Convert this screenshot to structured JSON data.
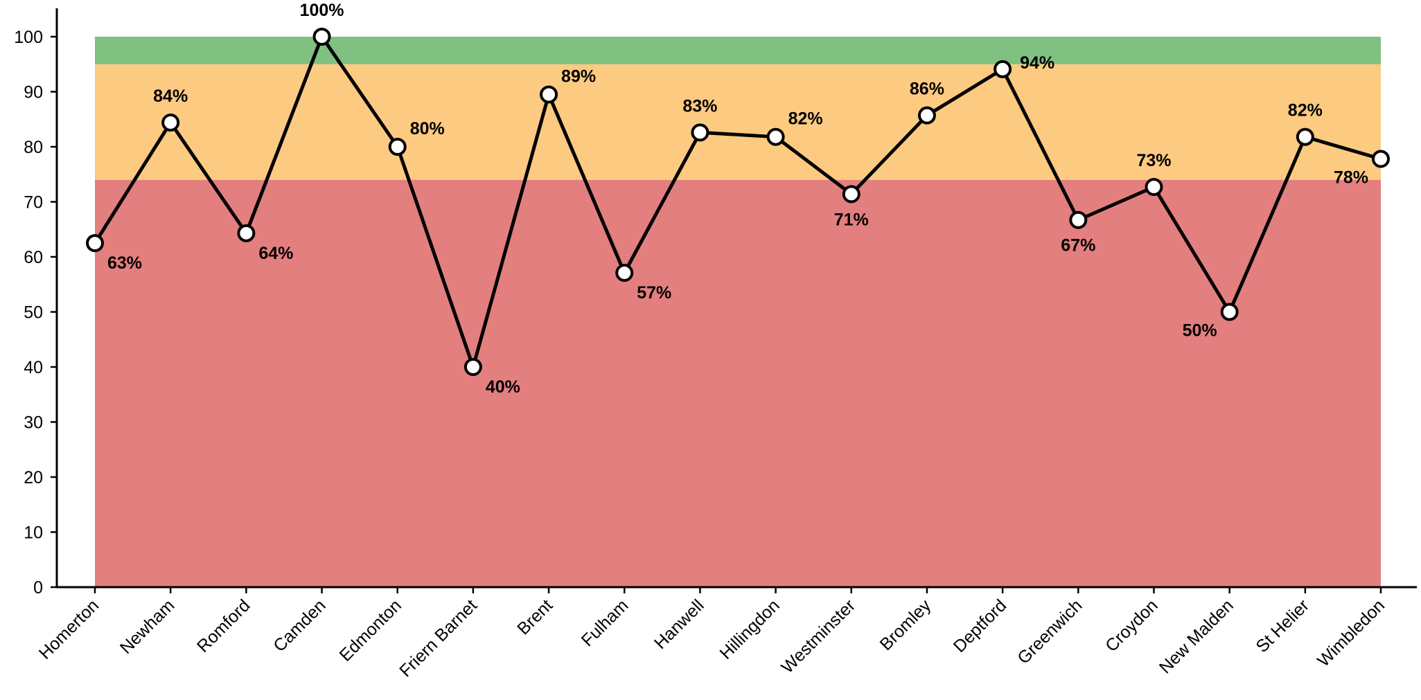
{
  "chart_data": {
    "type": "line",
    "title": "",
    "xlabel": "",
    "ylabel": "",
    "ylim": [
      0,
      100
    ],
    "yticks": [
      "0",
      "10",
      "20",
      "30",
      "40",
      "50",
      "60",
      "70",
      "80",
      "90",
      "100"
    ],
    "grid": false,
    "legend": "none",
    "categories": [
      "Homerton",
      "Newham",
      "Romford",
      "Camden",
      "Edmonton",
      "Friern Barnet",
      "Brent",
      "Fulham",
      "Hanwell",
      "Hillingdon",
      "Westminster",
      "Bromley",
      "Deptford",
      "Greenwich",
      "Croydon",
      "New Malden",
      "St Helier",
      "Wimbledon"
    ],
    "series": [
      {
        "values": [
          62.5,
          84.4,
          64.3,
          100,
          80,
          40,
          89.5,
          57.1,
          82.6,
          81.8,
          71.4,
          85.7,
          94.1,
          66.7,
          72.7,
          50,
          81.8,
          77.8
        ],
        "labels": [
          "63%",
          "84%",
          "64%",
          "100%",
          "80%",
          "40%",
          "89%",
          "57%",
          "83%",
          "82%",
          "71%",
          "86%",
          "94%",
          "67%",
          "73%",
          "50%",
          "82%",
          "78%"
        ],
        "label_positions": [
          "below-right",
          "above",
          "below-right",
          "above",
          "above-right",
          "below-right",
          "above-right",
          "below-right",
          "above",
          "above-right",
          "below",
          "above",
          "right",
          "below",
          "above",
          "below-left",
          "above",
          "below-left"
        ]
      }
    ],
    "bands": [
      {
        "from": 0,
        "to": 74,
        "color": "#e47f7f"
      },
      {
        "from": 74,
        "to": 95,
        "color": "#fdca81"
      },
      {
        "from": 95,
        "to": 100,
        "color": "#80c080"
      }
    ],
    "colors": {
      "line": "#000000",
      "marker_fill": "#ffffff",
      "marker_stroke": "#000000",
      "axis": "#000000"
    }
  }
}
